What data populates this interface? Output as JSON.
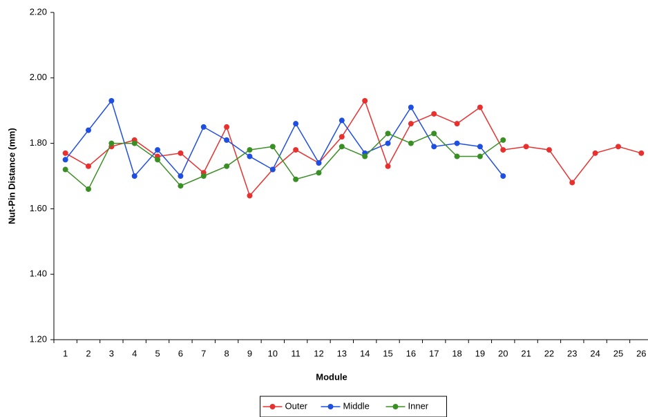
{
  "chart_data": {
    "type": "line",
    "x_label": "Module",
    "y_label": "Nut-Pin Distance (mm)",
    "categories": [
      "1",
      "2",
      "3",
      "4",
      "5",
      "6",
      "7",
      "8",
      "9",
      "10",
      "11",
      "12",
      "13",
      "14",
      "15",
      "16",
      "17",
      "18",
      "19",
      "20",
      "21",
      "22",
      "23",
      "24",
      "25",
      "26"
    ],
    "series": [
      {
        "name": "Outer",
        "color": "#e8312f",
        "values": [
          1.77,
          1.73,
          1.79,
          1.81,
          1.76,
          1.77,
          1.71,
          1.85,
          1.64,
          1.72,
          1.78,
          1.74,
          1.82,
          1.93,
          1.73,
          1.86,
          1.89,
          1.86,
          1.91,
          1.78,
          1.79,
          1.78,
          1.68,
          1.77,
          1.79,
          1.77
        ]
      },
      {
        "name": "Middle",
        "color": "#1f4fe0",
        "values": [
          1.75,
          1.84,
          1.93,
          1.7,
          1.78,
          1.7,
          1.85,
          1.81,
          1.76,
          1.72,
          1.86,
          1.74,
          1.87,
          1.77,
          1.8,
          1.91,
          1.79,
          1.8,
          1.79,
          1.7,
          null,
          null,
          null,
          null,
          null,
          null
        ]
      },
      {
        "name": "Inner",
        "color": "#3a8f24",
        "values": [
          1.72,
          1.66,
          1.8,
          1.8,
          1.75,
          1.67,
          1.7,
          1.73,
          1.78,
          1.79,
          1.69,
          1.71,
          1.79,
          1.76,
          1.83,
          1.8,
          1.83,
          1.76,
          1.76,
          1.81,
          null,
          null,
          null,
          null,
          null,
          null
        ]
      }
    ],
    "ylim": [
      1.2,
      2.2
    ],
    "yticks": [
      {
        "value": 1.2,
        "label": "1.20"
      },
      {
        "value": 1.4,
        "label": "1.40"
      },
      {
        "value": 1.6,
        "label": "1.60"
      },
      {
        "value": 1.8,
        "label": "1.80"
      },
      {
        "value": 2.0,
        "label": "2.00"
      },
      {
        "value": 2.2,
        "label": "2.20"
      }
    ],
    "legend": "bottom"
  }
}
